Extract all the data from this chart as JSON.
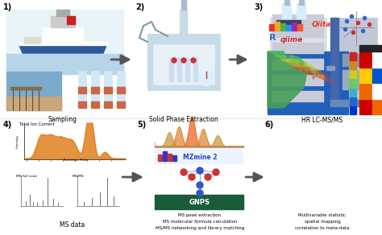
{
  "fig_width": 4.74,
  "fig_height": 2.92,
  "dpi": 100,
  "bg_color": "#ffffff",
  "arrow_color": "#555555",
  "ship_color": "#2a5a98",
  "ocean_color": "#b8d4e8",
  "sand_color": "#c8a87a",
  "water_color": "#7aabcc",
  "tube_color": "#d0e8f8",
  "tube_cap": "#cc6644",
  "spe_color": "#c8dce8",
  "lc_left_color": "#dde0e8",
  "lc_right_color": "#b8c8d8",
  "tic_color": "#e08020",
  "ms_bar_color": "#666666",
  "gnps_color": "#1a5c3a",
  "mzmine_color": "#2244cc",
  "r_color": "#276dc3",
  "qiime_color": "#cc2222",
  "qiita_color": "#e63525",
  "map_blue": "#2060b8",
  "map_green": "#4a9e5a",
  "map_yellow": "#d4c020",
  "map_orange": "#cc7020",
  "peak_colors": [
    "#cc8833",
    "#dd7722",
    "#ee6611",
    "#dd7722",
    "#cc8833"
  ],
  "network_node_colors": [
    "#cc3333",
    "#cc3333",
    "#3366cc",
    "#cc3333",
    "#3366cc",
    "#cc3333",
    "#3366cc"
  ],
  "bar_colors_qiita": [
    "#e63525",
    "#f5a623",
    "#4caf50",
    "#2196f3",
    "#9c27b0",
    "#ff5722"
  ],
  "heatmap_row1": [
    "#cc0000",
    "#ee6600",
    "#ffcc00"
  ],
  "heatmap_row2": [
    "#ee6600",
    "#ffffff",
    "#0055cc"
  ],
  "heatmap_row3": [
    "#ffcc00",
    "#0055cc",
    "#cc0000"
  ],
  "heatmap_row4": [
    "#cc0000",
    "#ffffff",
    "#ee6600"
  ],
  "panel1_label": "Sampling",
  "panel2_label": "Solid Phase Extraction",
  "panel3_label": "HR LC-MS/MS",
  "panel4_label": "MS data",
  "panel5_lines": [
    "MS peak extraction",
    "MS molecular formula calculation",
    "MS/MS networking and library matching"
  ],
  "panel6_lines": [
    "Multivariable statistic",
    "spatial mapping",
    "correlation to meta-data"
  ],
  "tic_label": "Total Ion Current",
  "ms_label1": "MS full scan",
  "ms_label2": "MS/MS",
  "gnps_label": "GNPS",
  "mzmine_label": "MZmine 2"
}
